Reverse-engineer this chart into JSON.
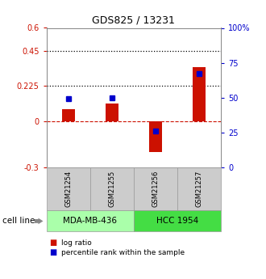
{
  "title": "GDS825 / 13231",
  "samples": [
    "GSM21254",
    "GSM21255",
    "GSM21256",
    "GSM21257"
  ],
  "log_ratio": [
    0.075,
    0.11,
    -0.2,
    0.345
  ],
  "percentile_rank": [
    49,
    50,
    26,
    67
  ],
  "left_ylim": [
    -0.3,
    0.6
  ],
  "right_ylim": [
    0,
    100
  ],
  "left_yticks": [
    -0.3,
    0,
    0.225,
    0.45,
    0.6
  ],
  "left_yticklabels": [
    "-0.3",
    "0",
    "0.225",
    "0.45",
    "0.6"
  ],
  "right_yticks": [
    0,
    25,
    50,
    75,
    100
  ],
  "right_yticklabels": [
    "0",
    "25",
    "50",
    "75",
    "100%"
  ],
  "hline_values": [
    0.225,
    0.45
  ],
  "bar_color": "#cc1100",
  "dot_color": "#0000cc",
  "bar_width": 0.3,
  "groups": [
    {
      "label": "MDA-MB-436",
      "samples": [
        0,
        1
      ],
      "color": "#aaffaa"
    },
    {
      "label": "HCC 1954",
      "samples": [
        2,
        3
      ],
      "color": "#44dd44"
    }
  ],
  "group_label_prefix": "cell line",
  "sample_box_color": "#cccccc",
  "background_color": "#ffffff",
  "legend_log_ratio": "log ratio",
  "legend_percentile": "percentile rank within the sample"
}
